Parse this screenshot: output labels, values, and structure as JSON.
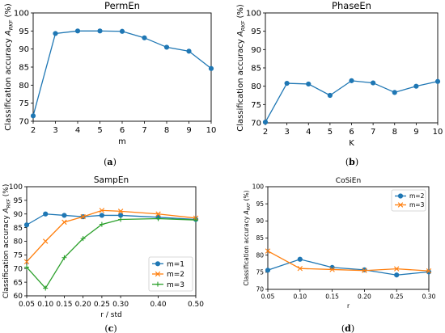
{
  "chart_data": [
    {
      "type": "line",
      "title": "PermEn",
      "xlabel": "m",
      "ylabel_main": "Classification accuracy ",
      "ylabel_sub": "RKF",
      "ylabel_unit": " (%)",
      "panel_label": "(a)",
      "xlim": [
        2,
        10
      ],
      "ylim": [
        70,
        100
      ],
      "xticks": [
        2,
        3,
        4,
        5,
        6,
        7,
        8,
        9,
        10
      ],
      "yticks": [
        70,
        75,
        80,
        85,
        90,
        95,
        100
      ],
      "series": [
        {
          "color": "#1f77b4",
          "marker": "o",
          "x": [
            2,
            3,
            4,
            5,
            6,
            7,
            8,
            9,
            10
          ],
          "y": [
            71.5,
            94.3,
            95.0,
            95.0,
            94.9,
            93.1,
            90.5,
            89.4,
            84.6
          ]
        }
      ]
    },
    {
      "type": "line",
      "title": "PhaseEn",
      "xlabel": "K",
      "ylabel_main": "Classification accuracy ",
      "ylabel_sub": "RKF",
      "ylabel_unit": " (%)",
      "panel_label": "(b)",
      "xlim": [
        2,
        10
      ],
      "ylim": [
        70,
        100
      ],
      "xticks": [
        2,
        3,
        4,
        5,
        6,
        7,
        8,
        9,
        10
      ],
      "yticks": [
        70,
        75,
        80,
        85,
        90,
        95,
        100
      ],
      "series": [
        {
          "color": "#1f77b4",
          "marker": "o",
          "x": [
            2,
            3,
            4,
            5,
            6,
            7,
            8,
            9,
            10
          ],
          "y": [
            70.2,
            80.8,
            80.6,
            77.5,
            81.5,
            80.9,
            78.3,
            80.0,
            81.3
          ]
        }
      ]
    },
    {
      "type": "line",
      "title": "SampEn",
      "xlabel": "r / std",
      "ylabel_main": "Classification accuracy ",
      "ylabel_sub": "RKF",
      "ylabel_unit": " (%)",
      "panel_label": "(c)",
      "xlim": [
        0.05,
        0.5
      ],
      "ylim": [
        60,
        100
      ],
      "xticks": [
        "0.05",
        "0.10",
        "0.15",
        "0.20",
        "0.25",
        "0.30",
        "0.40",
        "0.50"
      ],
      "yticks": [
        60,
        65,
        70,
        75,
        80,
        85,
        90,
        95,
        100
      ],
      "legend_position": "bottom-right",
      "series": [
        {
          "name": "m=1",
          "color": "#1f77b4",
          "marker": "o",
          "x": [
            0.05,
            0.1,
            0.15,
            0.2,
            0.25,
            0.3,
            0.4,
            0.5
          ],
          "y": [
            86.0,
            90.0,
            89.5,
            89.0,
            89.5,
            89.5,
            88.8,
            88.0
          ]
        },
        {
          "name": "m=2",
          "color": "#ff7f0e",
          "marker": "x",
          "x": [
            0.05,
            0.1,
            0.15,
            0.2,
            0.25,
            0.3,
            0.4,
            0.5
          ],
          "y": [
            72.5,
            80.0,
            87.0,
            89.0,
            91.3,
            91.0,
            90.0,
            88.5
          ]
        },
        {
          "name": "m=3",
          "color": "#2ca02c",
          "marker": "+",
          "x": [
            0.05,
            0.1,
            0.15,
            0.2,
            0.25,
            0.3,
            0.4,
            0.5
          ],
          "y": [
            70.5,
            62.8,
            74.0,
            81.0,
            86.2,
            88.0,
            88.3,
            87.8
          ]
        }
      ]
    },
    {
      "type": "line",
      "title": "CoSiEn",
      "xlabel": "r",
      "ylabel_main": "Classification accuracy ",
      "ylabel_sub": "RKF",
      "ylabel_unit": " (%)",
      "panel_label": "(d)",
      "xlim": [
        0.05,
        0.3
      ],
      "ylim": [
        70,
        100
      ],
      "xticks": [
        "0.05",
        "0.10",
        "0.15",
        "0.20",
        "0.25",
        "0.30"
      ],
      "yticks": [
        70,
        75,
        80,
        85,
        90,
        95,
        100
      ],
      "legend_position": "top-right",
      "series": [
        {
          "name": "m=2",
          "color": "#1f77b4",
          "marker": "o",
          "x": [
            0.05,
            0.1,
            0.15,
            0.2,
            0.25,
            0.3
          ],
          "y": [
            75.6,
            78.8,
            76.4,
            75.7,
            74.2,
            75.1
          ]
        },
        {
          "name": "m=3",
          "color": "#ff7f0e",
          "marker": "x",
          "x": [
            0.05,
            0.1,
            0.15,
            0.2,
            0.25,
            0.3
          ],
          "y": [
            81.2,
            76.1,
            75.8,
            75.5,
            76.0,
            75.4
          ]
        }
      ]
    }
  ]
}
